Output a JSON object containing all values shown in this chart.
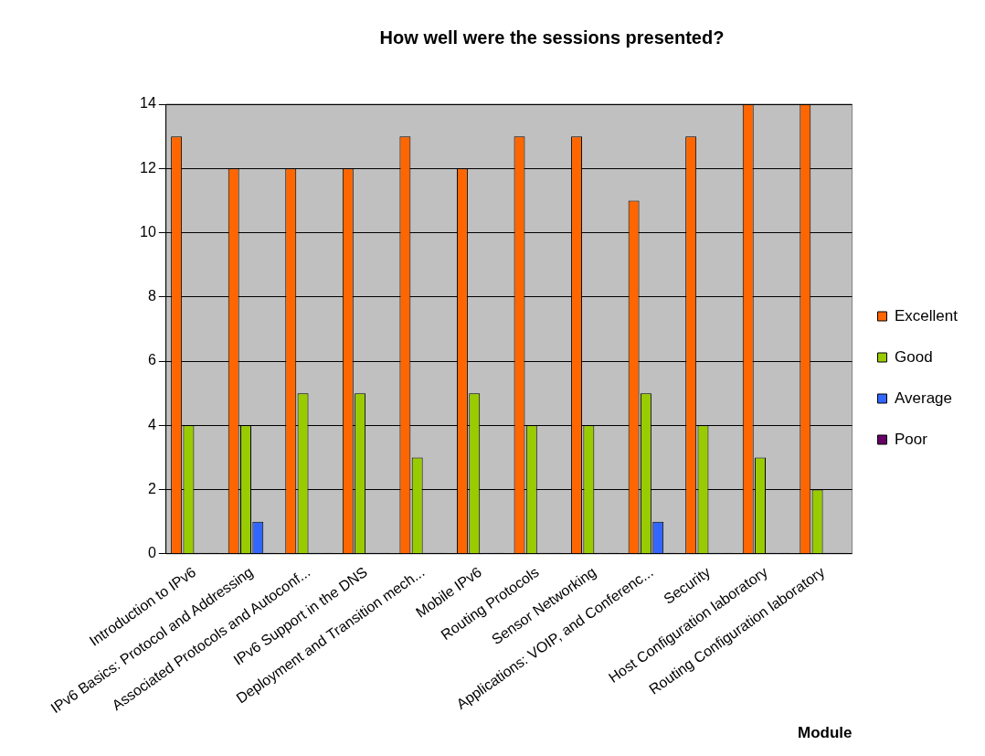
{
  "chart_data": {
    "type": "bar",
    "title": "How well were the sessions presented?",
    "xlabel": "Module",
    "categories": [
      "Introduction to IPv6",
      "IPv6 Basics: Protocol and Addressing",
      "Associated Protocols and Autoconf...",
      "IPv6 Support in the DNS",
      "Deployment and Transition mech...",
      "Mobile IPv6",
      "Routing Protocols",
      "Sensor Networking",
      "Applications: VOIP, and Conferenc...",
      "Security",
      "Host Configuration laboratory",
      "Routing Configuration laboratory"
    ],
    "series": [
      {
        "name": "Excellent",
        "color": "#ff6600",
        "values": [
          13,
          12,
          12,
          12,
          13,
          12,
          13,
          13,
          11,
          13,
          14,
          14
        ]
      },
      {
        "name": "Good",
        "color": "#99cc00",
        "values": [
          4,
          4,
          5,
          5,
          3,
          5,
          4,
          4,
          5,
          4,
          3,
          2
        ]
      },
      {
        "name": "Average",
        "color": "#3366ff",
        "values": [
          0,
          1,
          0,
          0,
          0,
          0,
          0,
          0,
          1,
          0,
          0,
          0
        ]
      },
      {
        "name": "Poor",
        "color": "#660066",
        "values": [
          0,
          0,
          0,
          0,
          0,
          0,
          0,
          0,
          0,
          0,
          0,
          0
        ]
      }
    ],
    "ylim": [
      0,
      14
    ],
    "yticks": [
      0,
      2,
      4,
      6,
      8,
      10,
      12,
      14
    ],
    "grid": "y",
    "legend": "right"
  }
}
